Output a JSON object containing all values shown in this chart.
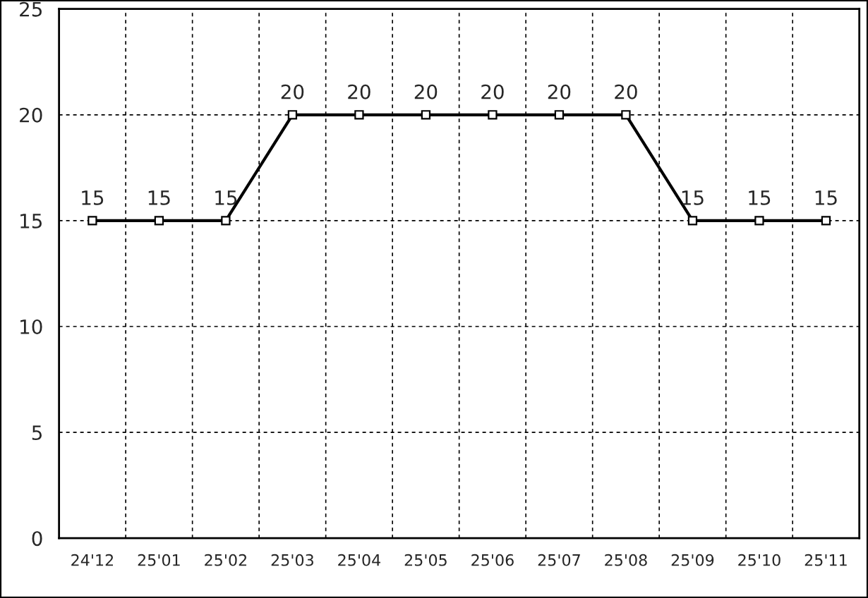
{
  "chart_data": {
    "type": "line",
    "categories": [
      "24'12",
      "25'01",
      "25'02",
      "25'03",
      "25'04",
      "25'05",
      "25'06",
      "25'07",
      "25'08",
      "25'09",
      "25'10",
      "25'11"
    ],
    "series": [
      {
        "color": "#000000",
        "values": [
          15,
          15,
          15,
          20,
          20,
          20,
          20,
          20,
          20,
          15,
          15,
          15
        ]
      }
    ],
    "ylim": [
      0,
      25
    ],
    "yticks": [
      0,
      5,
      10,
      15,
      20,
      25
    ],
    "grid": true,
    "marker": "square",
    "line_style": "solid",
    "data_labels": true,
    "legend": false
  }
}
